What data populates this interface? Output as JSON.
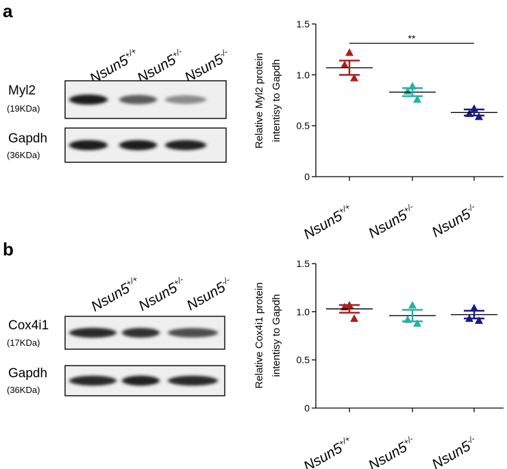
{
  "panels": [
    {
      "letter": "a",
      "lane_labels": [
        {
          "base": "Nsun5",
          "sup": "+/+"
        },
        {
          "base": "Nsun5",
          "sup": "+/-"
        },
        {
          "base": "Nsun5",
          "sup": "-/-"
        }
      ],
      "blots": [
        {
          "protein": "Myl2",
          "kda": "(19KDa)",
          "band_intensity": [
            0.95,
            0.65,
            0.42
          ]
        },
        {
          "protein": "Gapdh",
          "kda": "(36KDa)",
          "band_intensity": [
            0.95,
            0.95,
            0.92
          ]
        }
      ],
      "chart_data": {
        "type": "scatter",
        "ylabel_lines": [
          "Relative Myl2 protein",
          "intentisy to Gapdh"
        ],
        "ylim": [
          0,
          1.5
        ],
        "yticks": [
          "0",
          "0.5",
          "1.0",
          "1.5"
        ],
        "ytick_values": [
          0,
          0.5,
          1.0,
          1.5
        ],
        "categories": [
          {
            "base": "Nsun5",
            "sup": "+/+"
          },
          {
            "base": "Nsun5",
            "sup": "+/-"
          },
          {
            "base": "Nsun5",
            "sup": "-/-"
          }
        ],
        "series": [
          {
            "color": "#b01c1c",
            "points": [
              1.22,
              1.1,
              0.97
            ],
            "mean": 1.07,
            "sem": 0.07
          },
          {
            "color": "#27b0a4",
            "points": [
              0.89,
              0.84,
              0.76
            ],
            "mean": 0.83,
            "sem": 0.04
          },
          {
            "color": "#1a1a8a",
            "points": [
              0.67,
              0.62,
              0.59
            ],
            "mean": 0.63,
            "sem": 0.03
          }
        ],
        "significance": {
          "from": 0,
          "to": 2,
          "y": 1.31,
          "label": "**"
        }
      }
    },
    {
      "letter": "b",
      "lane_labels": [
        {
          "base": "Nsun5",
          "sup": "+/+"
        },
        {
          "base": "Nsun5",
          "sup": "+/-"
        },
        {
          "base": "Nsun5",
          "sup": "-/-"
        }
      ],
      "blots": [
        {
          "protein": "Cox4i1",
          "kda": "(17KDa)",
          "band_intensity": [
            0.9,
            0.85,
            0.72
          ]
        },
        {
          "protein": "Gapdh",
          "kda": "(36KDa)",
          "band_intensity": [
            0.9,
            0.92,
            0.9
          ]
        }
      ],
      "chart_data": {
        "type": "scatter",
        "ylabel_lines": [
          "Relative Cox4i1 protein",
          "intentisy to Gapdh"
        ],
        "ylim": [
          0,
          1.5
        ],
        "yticks": [
          "0",
          "0.5",
          "1.0",
          "1.5"
        ],
        "ytick_values": [
          0,
          0.5,
          1.0,
          1.5
        ],
        "categories": [
          {
            "base": "Nsun5",
            "sup": "+/+"
          },
          {
            "base": "Nsun5",
            "sup": "+/-"
          },
          {
            "base": "Nsun5",
            "sup": "-/-"
          }
        ],
        "series": [
          {
            "color": "#b01c1c",
            "points": [
              1.07,
              1.05,
              0.93
            ],
            "mean": 1.03,
            "sem": 0.04
          },
          {
            "color": "#27b0a4",
            "points": [
              1.07,
              0.92,
              0.88
            ],
            "mean": 0.96,
            "sem": 0.06
          },
          {
            "color": "#1a1a8a",
            "points": [
              1.04,
              0.93,
              0.91
            ],
            "mean": 0.97,
            "sem": 0.04
          }
        ]
      }
    }
  ]
}
